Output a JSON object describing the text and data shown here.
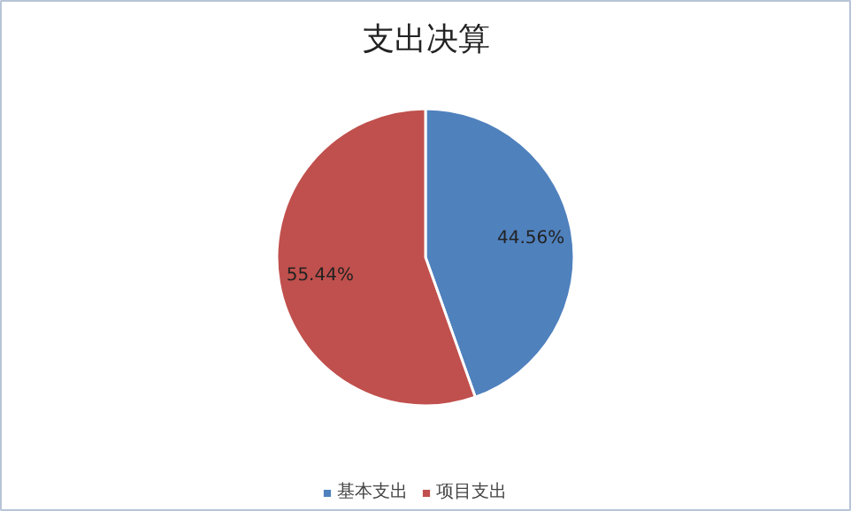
{
  "chart_data": {
    "type": "pie",
    "title": "支出决算",
    "categories": [
      "基本支出",
      "项目支出"
    ],
    "values": [
      44.56,
      55.44
    ],
    "colors": [
      "#4f81bd",
      "#c0504d"
    ],
    "value_labels": [
      "44.56%",
      "55.44%"
    ],
    "legend": "bottom"
  }
}
